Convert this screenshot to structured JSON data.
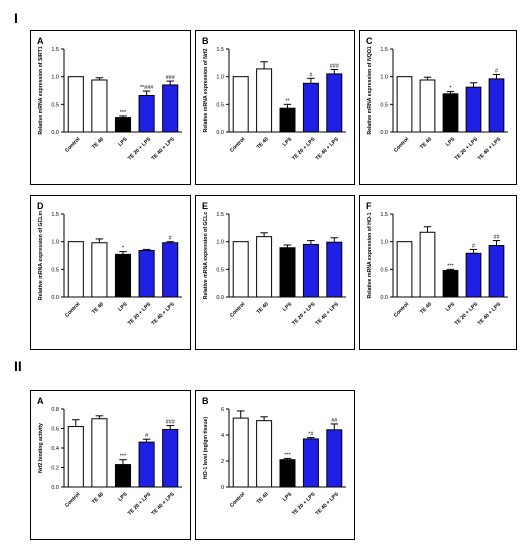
{
  "section_labels": [
    "I",
    "II"
  ],
  "colors": {
    "white_bar": "#ffffff",
    "black_bar": "#000000",
    "blue_bar": "#1f1fe6",
    "axis": "#000000"
  },
  "chart_data": [
    {
      "type": "bar",
      "letter": "A",
      "ylabel": "Relative mRNA expression of SIRT1",
      "categories": [
        "Control",
        "TE 40",
        "LPS",
        "TE 20 + LPS",
        "TE 40 + LPS"
      ],
      "values": [
        1.0,
        0.94,
        0.26,
        0.66,
        0.85
      ],
      "errors": [
        0.0,
        0.04,
        0.03,
        0.08,
        0.07
      ],
      "bar_colors": [
        "white",
        "white",
        "black",
        "blue",
        "blue"
      ],
      "annotations": [
        "",
        "",
        "***",
        "**###",
        "###"
      ],
      "ylim": [
        0,
        1.5
      ],
      "yticks": [
        "0.0",
        "0.5",
        "1.0",
        "1.5"
      ]
    },
    {
      "type": "bar",
      "letter": "B",
      "ylabel": "Relative mRNA expression of Nrf2",
      "categories": [
        "Control",
        "TE 40",
        "LPS",
        "TE 20 + LPS",
        "TE 40 + LPS"
      ],
      "values": [
        1.0,
        1.14,
        0.43,
        0.88,
        1.05
      ],
      "errors": [
        0.0,
        0.13,
        0.07,
        0.09,
        0.08
      ],
      "bar_colors": [
        "white",
        "white",
        "black",
        "blue",
        "blue"
      ],
      "annotations": [
        "",
        "",
        "**",
        "#",
        "###"
      ],
      "ylim": [
        0,
        1.5
      ],
      "yticks": [
        "0.0",
        "0.5",
        "1.0",
        "1.5"
      ]
    },
    {
      "type": "bar",
      "letter": "C",
      "ylabel": "Relative mRNA expression of NQO1",
      "categories": [
        "Control",
        "TE 40",
        "LPS",
        "TE 20 + LPS",
        "TE 40 + LPS"
      ],
      "values": [
        1.0,
        0.94,
        0.69,
        0.81,
        0.96
      ],
      "errors": [
        0.0,
        0.05,
        0.04,
        0.08,
        0.08
      ],
      "bar_colors": [
        "white",
        "white",
        "black",
        "blue",
        "blue"
      ],
      "annotations": [
        "",
        "",
        "*",
        "",
        "#"
      ],
      "ylim": [
        0,
        1.5
      ],
      "yticks": [
        "0.0",
        "0.5",
        "1.0",
        "1.5"
      ]
    },
    {
      "type": "bar",
      "letter": "D",
      "ylabel": "Relative mRNA expression of GCLm",
      "categories": [
        "Control",
        "TE 40",
        "LPS",
        "TE 20 + LPS",
        "TE 40 + LPS"
      ],
      "values": [
        1.0,
        0.98,
        0.77,
        0.84,
        0.98
      ],
      "errors": [
        0.0,
        0.07,
        0.05,
        0.02,
        0.02
      ],
      "bar_colors": [
        "white",
        "white",
        "black",
        "blue",
        "blue"
      ],
      "annotations": [
        "",
        "",
        "*",
        "",
        "#"
      ],
      "ylim": [
        0,
        1.5
      ],
      "yticks": [
        "0.0",
        "0.5",
        "1.0",
        "1.5"
      ]
    },
    {
      "type": "bar",
      "letter": "E",
      "ylabel": "Relative mRNA expression of GCLc",
      "categories": [
        "Control",
        "TE 40",
        "LPS",
        "TE 20 + LPS",
        "TE 40 + LPS"
      ],
      "values": [
        1.0,
        1.09,
        0.89,
        0.95,
        0.99
      ],
      "errors": [
        0.0,
        0.07,
        0.05,
        0.07,
        0.08
      ],
      "bar_colors": [
        "white",
        "white",
        "black",
        "blue",
        "blue"
      ],
      "annotations": [
        "",
        "",
        "",
        "",
        ""
      ],
      "ylim": [
        0,
        1.5
      ],
      "yticks": [
        "0.0",
        "0.5",
        "1.0",
        "1.5"
      ]
    },
    {
      "type": "bar",
      "letter": "F",
      "ylabel": "Relative mRNA expression of HO-1",
      "categories": [
        "Control",
        "TE 40",
        "LPS",
        "TE 20 + LPS",
        "TE 40 + LPS"
      ],
      "values": [
        1.0,
        1.17,
        0.48,
        0.79,
        0.93
      ],
      "errors": [
        0.0,
        0.1,
        0.02,
        0.07,
        0.09
      ],
      "bar_colors": [
        "white",
        "white",
        "black",
        "blue",
        "blue"
      ],
      "annotations": [
        "",
        "",
        "***",
        "#",
        "##"
      ],
      "ylim": [
        0,
        1.5
      ],
      "yticks": [
        "0.0",
        "0.5",
        "1.0",
        "1.5"
      ]
    },
    {
      "type": "bar",
      "letter": "A",
      "ylabel": "Nrf2 binding activity",
      "categories": [
        "Control",
        "TE 40",
        "LPS",
        "TE 20 + LPS",
        "TE 40 + LPS"
      ],
      "values": [
        0.62,
        0.7,
        0.23,
        0.46,
        0.59
      ],
      "errors": [
        0.07,
        0.03,
        0.05,
        0.03,
        0.04
      ],
      "bar_colors": [
        "white",
        "white",
        "black",
        "blue",
        "blue"
      ],
      "annotations": [
        "",
        "",
        "***",
        "#",
        "###"
      ],
      "ylim": [
        0,
        0.8
      ],
      "yticks": [
        "0.0",
        "0.2",
        "0.4",
        "0.6",
        "0.8"
      ]
    },
    {
      "type": "bar",
      "letter": "B",
      "ylabel": "HO-1 level (ng/gm tissue)",
      "categories": [
        "Control",
        "TE 40",
        "LPS",
        "TE 20 + LPS",
        "TE 40 + LPS"
      ],
      "values": [
        5.3,
        5.1,
        2.1,
        3.7,
        4.4
      ],
      "errors": [
        0.55,
        0.3,
        0.1,
        0.1,
        0.45
      ],
      "bar_colors": [
        "white",
        "white",
        "black",
        "blue",
        "blue"
      ],
      "annotations": [
        "",
        "",
        "***",
        "*#",
        "##"
      ],
      "ylim": [
        0,
        6
      ],
      "yticks": [
        "0",
        "2",
        "4",
        "6"
      ]
    }
  ]
}
